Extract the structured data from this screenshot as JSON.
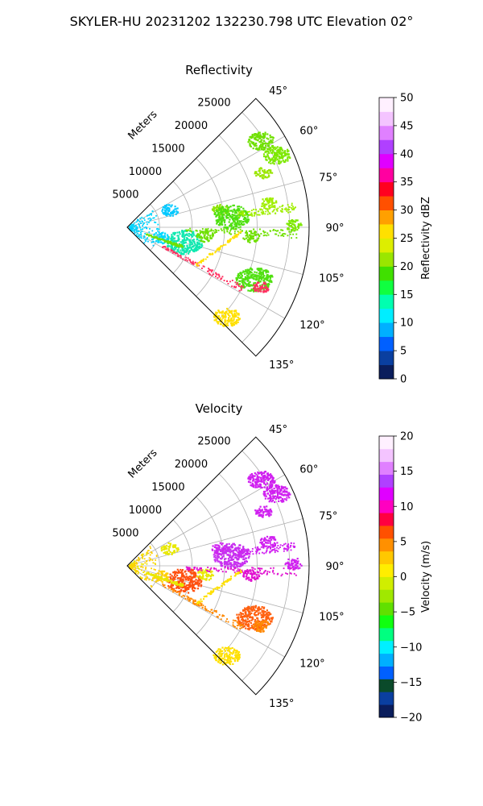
{
  "suptitle": "SKYLER-HU  20231202  132230.798 UTC Elevation 02°",
  "chart_data": [
    {
      "type": "polar-sector",
      "title": "Reflectivity",
      "range_label": "Meters",
      "range_ticks": [
        "5000",
        "10000",
        "15000",
        "20000",
        "25000"
      ],
      "angle_ticks": [
        "45°",
        "60°",
        "75°",
        "90°",
        "105°",
        "120°",
        "135°"
      ],
      "colorbar": {
        "label": "Reflectivity dBZ",
        "ticks": [
          "0",
          "5",
          "10",
          "15",
          "20",
          "25",
          "30",
          "35",
          "40",
          "45",
          "50"
        ],
        "range": [
          0,
          50
        ],
        "colors": [
          "#0a1d5c",
          "#0a3fa0",
          "#0060ff",
          "#00b0ff",
          "#00eeff",
          "#00ffb0",
          "#10ff40",
          "#40e000",
          "#9ae600",
          "#ddee00",
          "#ffe000",
          "#ffa000",
          "#ff5000",
          "#ff0020",
          "#ff00a0",
          "#e000ff",
          "#b040ff",
          "#e080ff",
          "#f4c4ff",
          "#fff0ff"
        ]
      },
      "echoes": [
        {
          "az": 57,
          "r": 24500,
          "size": "medium",
          "color": "#6fe000"
        },
        {
          "az": 64,
          "r": 25500,
          "size": "medium",
          "color": "#7de800"
        },
        {
          "az": 68,
          "r": 22500,
          "size": "small",
          "color": "#9ae600"
        },
        {
          "az": 79,
          "r": 14500,
          "size": "small",
          "color": "#8de400"
        },
        {
          "az": 84,
          "r": 16000,
          "size": "large",
          "color": "#4fe010"
        },
        {
          "az": 80,
          "r": 22000,
          "size": "small",
          "color": "#a0ee00"
        },
        {
          "az": 89,
          "r": 25500,
          "size": "small",
          "color": "#7de800"
        },
        {
          "az": 94,
          "r": 19000,
          "size": "small",
          "color": "#6fe000"
        },
        {
          "az": 104,
          "r": 9000,
          "size": "large",
          "color": "#10e8b0"
        },
        {
          "az": 107,
          "r": 5200,
          "size": "small",
          "color": "#00d8ff"
        },
        {
          "az": 112,
          "r": 21000,
          "size": "large",
          "color": "#50e010"
        },
        {
          "az": 114,
          "r": 22500,
          "size": "small",
          "color": "#ff3060"
        },
        {
          "az": 132,
          "r": 20500,
          "size": "medium",
          "color": "#ffe000"
        },
        {
          "az": 67,
          "r": 7000,
          "size": "small",
          "color": "#00c8ff"
        },
        {
          "az": 96,
          "r": 12000,
          "size": "small",
          "color": "#6fe000"
        }
      ]
    },
    {
      "type": "polar-sector",
      "title": "Velocity",
      "range_label": "Meters",
      "range_ticks": [
        "5000",
        "10000",
        "15000",
        "20000",
        "25000"
      ],
      "angle_ticks": [
        "45°",
        "60°",
        "75°",
        "90°",
        "105°",
        "120°",
        "135°"
      ],
      "colorbar": {
        "label": "Velocity (m/s)",
        "ticks": [
          "−20",
          "−15",
          "−10",
          "−5",
          "0",
          "5",
          "10",
          "15",
          "20"
        ],
        "range": [
          -20,
          20
        ],
        "colors": [
          "#0a1d5c",
          "#0a3fa0",
          "#0a4a2a",
          "#0060ff",
          "#00b0ff",
          "#00f0ff",
          "#00ff80",
          "#10ff10",
          "#60e000",
          "#a0e800",
          "#d0ee00",
          "#ffee00",
          "#ffc800",
          "#ff9000",
          "#ff5000",
          "#ff0040",
          "#ff00c0",
          "#e000ff",
          "#b040ff",
          "#e080ff",
          "#f4c4ff",
          "#fff0ff"
        ]
      },
      "echoes": [
        {
          "az": 57,
          "r": 24500,
          "size": "medium",
          "color": "#d020f0"
        },
        {
          "az": 64,
          "r": 25500,
          "size": "medium",
          "color": "#d020f0"
        },
        {
          "az": 68,
          "r": 22500,
          "size": "small",
          "color": "#d020f0"
        },
        {
          "az": 79,
          "r": 14500,
          "size": "small",
          "color": "#d020f0"
        },
        {
          "az": 84,
          "r": 16000,
          "size": "large",
          "color": "#c830f0"
        },
        {
          "az": 80,
          "r": 22000,
          "size": "small",
          "color": "#d020f0"
        },
        {
          "az": 89,
          "r": 25500,
          "size": "small",
          "color": "#d020f0"
        },
        {
          "az": 94,
          "r": 19000,
          "size": "small",
          "color": "#e010d0"
        },
        {
          "az": 104,
          "r": 9000,
          "size": "large",
          "color": "#ff5010"
        },
        {
          "az": 107,
          "r": 5200,
          "size": "small",
          "color": "#ffd000"
        },
        {
          "az": 112,
          "r": 21000,
          "size": "large",
          "color": "#ff6010"
        },
        {
          "az": 114,
          "r": 22500,
          "size": "small",
          "color": "#ff8800"
        },
        {
          "az": 132,
          "r": 20500,
          "size": "medium",
          "color": "#ffe000"
        },
        {
          "az": 67,
          "r": 7000,
          "size": "small",
          "color": "#e8e800"
        },
        {
          "az": 96,
          "r": 12000,
          "size": "small",
          "color": "#e8e800"
        }
      ]
    }
  ]
}
